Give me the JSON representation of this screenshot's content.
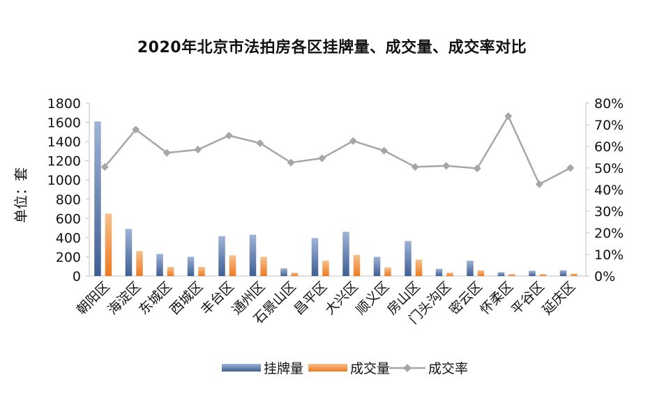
{
  "chart_data": {
    "type": "bar",
    "title": "2020年北京市法拍房各区挂牌量、成交量、成交率对比",
    "ylabel": "单位：套",
    "ylim": [
      0,
      1800
    ],
    "y_ticks": [
      "0",
      "200",
      "400",
      "600",
      "800",
      "1000",
      "1200",
      "1400",
      "1600",
      "1800"
    ],
    "y2lim": [
      0,
      80
    ],
    "y2_ticks": [
      "0%",
      "10%",
      "20%",
      "30%",
      "40%",
      "50%",
      "60%",
      "70%",
      "80%"
    ],
    "categories": [
      "朝阳区",
      "海淀区",
      "东城区",
      "西城区",
      "丰台区",
      "通州区",
      "石景山区",
      "昌平区",
      "大兴区",
      "顺义区",
      "房山区",
      "门头沟区",
      "密云区",
      "怀柔区",
      "平谷区",
      "延庆区"
    ],
    "series": [
      {
        "name": "挂牌量",
        "type": "bar",
        "axis": "left",
        "color": "#4a6a9e",
        "values": [
          1610,
          490,
          230,
          200,
          415,
          430,
          80,
          395,
          460,
          200,
          365,
          75,
          160,
          40,
          55,
          60
        ]
      },
      {
        "name": "成交量",
        "type": "bar",
        "axis": "left",
        "color": "#f08a33",
        "values": [
          650,
          260,
          95,
          95,
          215,
          200,
          35,
          160,
          220,
          90,
          170,
          35,
          60,
          20,
          20,
          25
        ]
      },
      {
        "name": "成交率",
        "type": "line",
        "axis": "right",
        "color": "#a6a6a6",
        "values": [
          50.5,
          67.8,
          57,
          58.5,
          65,
          61.5,
          52.5,
          54.5,
          62.5,
          58,
          50.5,
          51,
          49.8,
          74,
          42.5,
          50
        ]
      }
    ],
    "legend_position": "bottom",
    "grid": false
  }
}
